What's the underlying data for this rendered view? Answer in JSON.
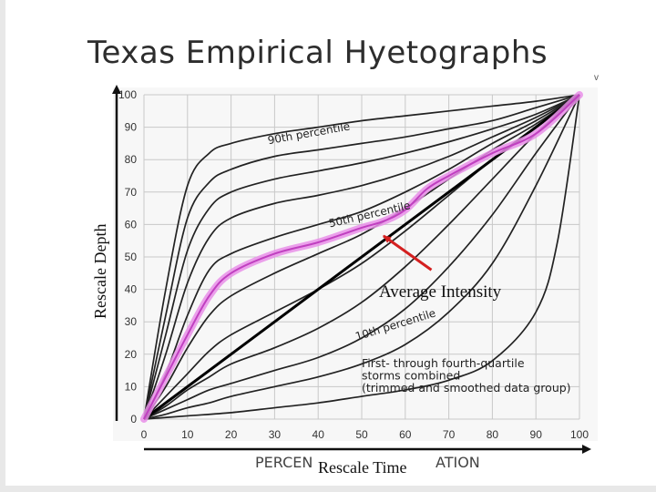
{
  "slide": {
    "title": "Texas Empirical Hyetographs",
    "corner_mark": "v"
  },
  "overlay": {
    "ylabel": "Rescale Depth",
    "xlabel": "Rescale Time",
    "average_label": "Average Intensity"
  },
  "colors": {
    "curve": "#222222",
    "highlight": "#e98fe9",
    "highlight_core": "#c040c0",
    "arrow": "#d42020",
    "axis": "#111111",
    "grid": "#c8c8c8",
    "panel": "#f7f7f7"
  },
  "chart_data": {
    "type": "line",
    "xlabel_visible": "PERCEN ... ATION",
    "ylabel": "",
    "xlim": [
      0,
      100
    ],
    "ylim": [
      0,
      100
    ],
    "x_ticks": [
      0,
      10,
      20,
      30,
      40,
      50,
      60,
      70,
      80,
      90,
      100
    ],
    "y_ticks": [
      0,
      10,
      20,
      30,
      40,
      50,
      60,
      70,
      80,
      90,
      100
    ],
    "grid": true,
    "annotations": [
      {
        "text": "90th percentile",
        "x": 38,
        "y": 87,
        "rotate": -10
      },
      {
        "text": "50th percentile",
        "x": 52,
        "y": 62,
        "rotate": -13
      },
      {
        "text": "10th percentile",
        "x": 58,
        "y": 28,
        "rotate": -17
      },
      {
        "text": "First- through fourth-quartile",
        "x": 50,
        "y": 16
      },
      {
        "text": "storms combined",
        "x": 50,
        "y": 12.2
      },
      {
        "text": "(trimmed and smoothed data group)",
        "x": 50,
        "y": 8.4
      }
    ],
    "series": [
      {
        "role": "percentile",
        "x": [
          0,
          5,
          10,
          15,
          20,
          30,
          40,
          50,
          60,
          70,
          80,
          90,
          100
        ],
        "y": [
          0,
          40,
          72,
          82,
          85,
          88,
          90,
          92,
          93.5,
          95,
          96.5,
          98,
          100
        ]
      },
      {
        "role": "percentile",
        "x": [
          0,
          5,
          10,
          15,
          20,
          30,
          40,
          50,
          60,
          70,
          80,
          90,
          100
        ],
        "y": [
          0,
          32,
          62,
          73,
          77,
          81,
          83,
          85,
          87,
          89.5,
          92,
          96,
          100
        ]
      },
      {
        "role": "percentile",
        "x": [
          0,
          5,
          10,
          15,
          20,
          30,
          40,
          50,
          60,
          70,
          80,
          90,
          100
        ],
        "y": [
          0,
          26,
          52,
          65,
          70,
          74,
          76.5,
          79,
          82,
          85.5,
          89.5,
          94,
          100
        ]
      },
      {
        "role": "percentile",
        "x": [
          0,
          5,
          10,
          15,
          20,
          30,
          40,
          50,
          60,
          70,
          80,
          90,
          100
        ],
        "y": [
          0,
          20,
          42,
          56,
          62,
          66.5,
          69,
          72,
          76,
          81,
          87,
          93,
          100
        ]
      },
      {
        "role": "percentile",
        "x": [
          0,
          5,
          10,
          15,
          20,
          30,
          40,
          50,
          60,
          70,
          80,
          90,
          100
        ],
        "y": [
          0,
          14,
          32,
          46,
          51,
          56,
          60,
          64,
          70,
          77,
          85,
          92,
          100
        ]
      },
      {
        "role": "percentile",
        "x": [
          0,
          5,
          10,
          15,
          20,
          30,
          40,
          50,
          60,
          70,
          80,
          90,
          100
        ],
        "y": [
          0,
          10,
          22,
          32,
          38,
          45,
          51,
          57,
          65,
          74,
          83,
          91,
          100
        ]
      },
      {
        "role": "percentile",
        "x": [
          0,
          5,
          10,
          15,
          20,
          30,
          40,
          50,
          60,
          70,
          80,
          90,
          100
        ],
        "y": [
          0,
          7,
          14,
          21,
          26,
          33,
          40,
          48,
          58,
          69,
          80,
          90,
          100
        ]
      },
      {
        "role": "percentile",
        "x": [
          0,
          5,
          10,
          15,
          20,
          30,
          40,
          50,
          60,
          70,
          80,
          90,
          100
        ],
        "y": [
          0,
          4,
          9,
          13,
          17,
          22,
          28,
          36,
          47,
          60,
          74,
          88,
          100
        ]
      },
      {
        "role": "percentile",
        "x": [
          0,
          5,
          10,
          15,
          20,
          30,
          40,
          50,
          60,
          70,
          80,
          90,
          100
        ],
        "y": [
          0,
          3,
          6,
          9,
          11,
          15,
          19,
          25,
          34,
          47,
          63,
          82,
          100
        ]
      },
      {
        "role": "percentile",
        "x": [
          0,
          5,
          10,
          15,
          20,
          30,
          40,
          50,
          60,
          70,
          80,
          90,
          100
        ],
        "y": [
          0,
          1.5,
          3.5,
          5,
          7,
          10,
          13,
          17,
          23,
          33,
          48,
          72,
          100
        ]
      },
      {
        "role": "percentile",
        "x": [
          0,
          10,
          20,
          30,
          40,
          50,
          60,
          70,
          80,
          90,
          95,
          100
        ],
        "y": [
          0,
          1,
          2,
          3.5,
          5,
          7,
          9,
          12,
          18,
          33,
          55,
          100
        ]
      },
      {
        "role": "average",
        "x": [
          0,
          100
        ],
        "y": [
          0,
          100
        ]
      },
      {
        "role": "median-highlight",
        "x": [
          0,
          5,
          10,
          15,
          20,
          30,
          40,
          50,
          55,
          60,
          65,
          70,
          80,
          90,
          100
        ],
        "y": [
          0,
          13,
          26,
          38,
          45,
          51,
          54.5,
          59,
          61,
          64.5,
          71,
          75,
          82,
          88,
          100
        ]
      }
    ],
    "arrow": {
      "from": [
        66,
        46
      ],
      "to": [
        55,
        56.5
      ]
    }
  }
}
